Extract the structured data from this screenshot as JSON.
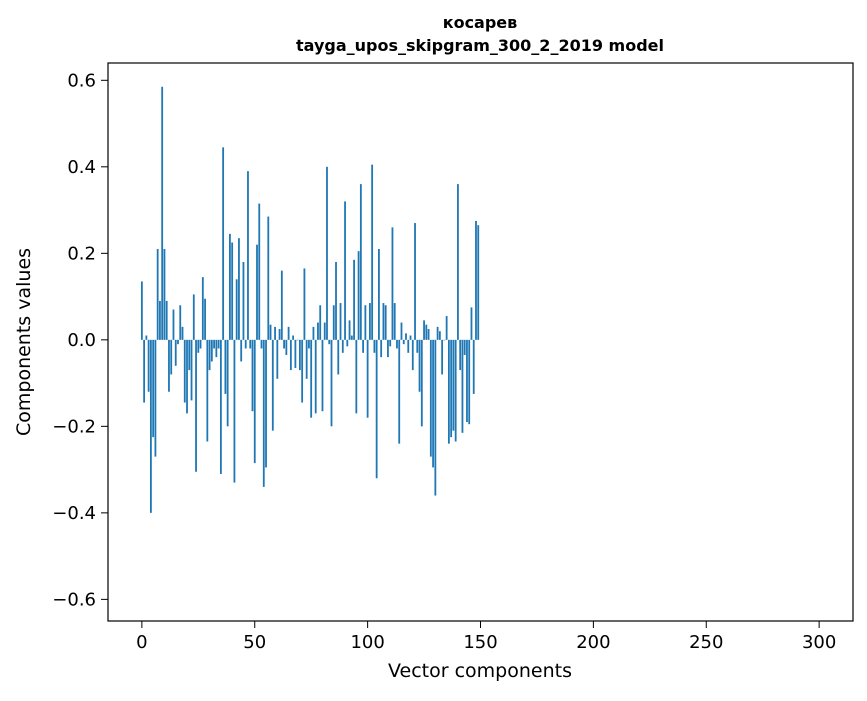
{
  "chart_data": {
    "type": "bar",
    "title_line1": "косарев",
    "title_line2": "tayga_upos_skipgram_300_2_2019 model",
    "xlabel": "Vector components",
    "ylabel": "Components values",
    "xlim": [
      -15,
      315
    ],
    "ylim": [
      -0.65,
      0.64
    ],
    "x_ticks": [
      0,
      50,
      100,
      150,
      200,
      250,
      300
    ],
    "x_tick_labels": [
      "0",
      "50",
      "100",
      "150",
      "200",
      "250",
      "300"
    ],
    "y_ticks": [
      -0.6,
      -0.4,
      -0.2,
      0.0,
      0.2,
      0.4,
      0.6
    ],
    "y_tick_labels": [
      "−0.6",
      "−0.4",
      "−0.2",
      "0.0",
      "0.2",
      "0.4",
      "0.6"
    ],
    "bar_color": "#1f77b4",
    "grid": false,
    "values": [
      0.135,
      -0.145,
      0.01,
      -0.12,
      -0.4,
      -0.225,
      -0.27,
      0.21,
      0.09,
      0.585,
      0.21,
      0.09,
      -0.12,
      -0.08,
      0.07,
      -0.06,
      -0.01,
      0.08,
      0.03,
      -0.145,
      -0.17,
      -0.07,
      -0.14,
      0.105,
      -0.305,
      -0.03,
      -0.02,
      0.145,
      0.095,
      -0.235,
      -0.07,
      -0.05,
      -0.02,
      -0.04,
      -0.02,
      -0.31,
      0.445,
      -0.125,
      -0.2,
      0.245,
      0.225,
      -0.33,
      0.14,
      0.235,
      -0.05,
      0.18,
      -0.02,
      0.39,
      -0.02,
      -0.165,
      -0.285,
      0.22,
      0.315,
      -0.02,
      -0.34,
      -0.295,
      0.285,
      0.035,
      -0.21,
      0.03,
      -0.09,
      0.025,
      0.16,
      -0.02,
      -0.035,
      0.03,
      -0.07,
      0.01,
      -0.065,
      0.0,
      -0.07,
      -0.145,
      0.165,
      -0.09,
      -0.02,
      -0.18,
      0.03,
      -0.17,
      0.04,
      0.08,
      -0.165,
      0.04,
      0.4,
      -0.01,
      -0.2,
      0.08,
      0.18,
      -0.08,
      0.085,
      -0.03,
      0.32,
      -0.015,
      0.045,
      0.01,
      0.185,
      -0.17,
      0.205,
      0.36,
      -0.03,
      0.08,
      -0.18,
      0.085,
      0.405,
      -0.03,
      -0.32,
      0.21,
      -0.04,
      0.085,
      0.08,
      -0.04,
      -0.015,
      0.26,
      0.085,
      -0.02,
      -0.24,
      0.04,
      -0.01,
      0.015,
      -0.03,
      0.01,
      -0.07,
      0.27,
      -0.03,
      -0.12,
      -0.2,
      0.045,
      0.035,
      0.025,
      -0.27,
      -0.295,
      -0.36,
      0.03,
      0.02,
      -0.08,
      0.0,
      0.055,
      -0.24,
      -0.225,
      -0.21,
      -0.235,
      0.36,
      -0.07,
      -0.215,
      -0.035,
      -0.19,
      -0.195,
      0.075,
      -0.125,
      0.275,
      0.265
    ]
  }
}
